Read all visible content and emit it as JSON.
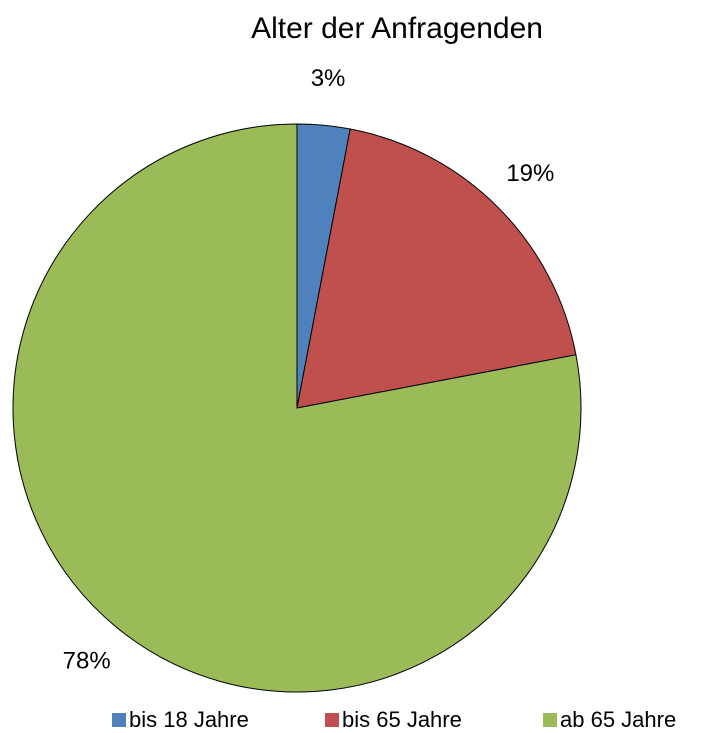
{
  "chart_data": {
    "type": "pie",
    "title": "Alter der Anfragenden",
    "categories": [
      "bis 18 Jahre",
      "bis 65 Jahre",
      "ab 65 Jahre"
    ],
    "values": [
      3,
      19,
      78
    ],
    "value_labels": [
      "3%",
      "19%",
      "78%"
    ],
    "colors": [
      "#4f81bd",
      "#c0504d",
      "#9bbb59"
    ],
    "legend": "bottom"
  }
}
